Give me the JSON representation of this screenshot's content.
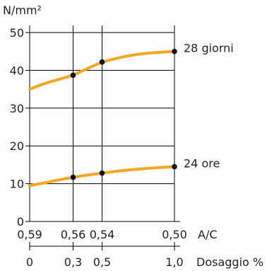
{
  "chart_data": {
    "type": "line",
    "ylabel": "N/mm²",
    "ylim": [
      0,
      50
    ],
    "yticks": [
      "0",
      "10",
      "20",
      "30",
      "40",
      "50"
    ],
    "x_axis_top": {
      "label": "A/C",
      "ticks": [
        "0,59",
        "0,56",
        "0,54",
        "0,50"
      ],
      "values": [
        0.59,
        0.56,
        0.54,
        0.5
      ]
    },
    "x_axis_bottom": {
      "label": "Dosaggio %",
      "ticks": [
        "0",
        "0,3",
        "0,5",
        "1,0"
      ],
      "values": [
        0,
        0.3,
        0.5,
        1.0
      ]
    },
    "grid": true,
    "series": [
      {
        "name": "28 giorni",
        "color": "#f5a623",
        "curve": [
          [
            0,
            35
          ],
          [
            0.1,
            36.5
          ],
          [
            0.2,
            37.6
          ],
          [
            0.3,
            38.7
          ],
          [
            0.4,
            40.5
          ],
          [
            0.5,
            42.2
          ],
          [
            0.6,
            43.2
          ],
          [
            0.7,
            44.0
          ],
          [
            0.8,
            44.5
          ],
          [
            0.9,
            44.8
          ],
          [
            1.0,
            45.0
          ]
        ],
        "points": [
          [
            0.3,
            38.7
          ],
          [
            0.5,
            42.2
          ],
          [
            1.0,
            45.0
          ]
        ]
      },
      {
        "name": "24 ore",
        "color": "#f5a623",
        "curve": [
          [
            0,
            9.5
          ],
          [
            0.1,
            10.2
          ],
          [
            0.2,
            11.0
          ],
          [
            0.3,
            11.7
          ],
          [
            0.4,
            12.3
          ],
          [
            0.5,
            12.8
          ],
          [
            0.6,
            13.3
          ],
          [
            0.7,
            13.7
          ],
          [
            0.8,
            14.0
          ],
          [
            0.9,
            14.3
          ],
          [
            1.0,
            14.5
          ]
        ],
        "points": [
          [
            0.3,
            11.7
          ],
          [
            0.5,
            12.8
          ],
          [
            1.0,
            14.5
          ]
        ]
      }
    ]
  }
}
